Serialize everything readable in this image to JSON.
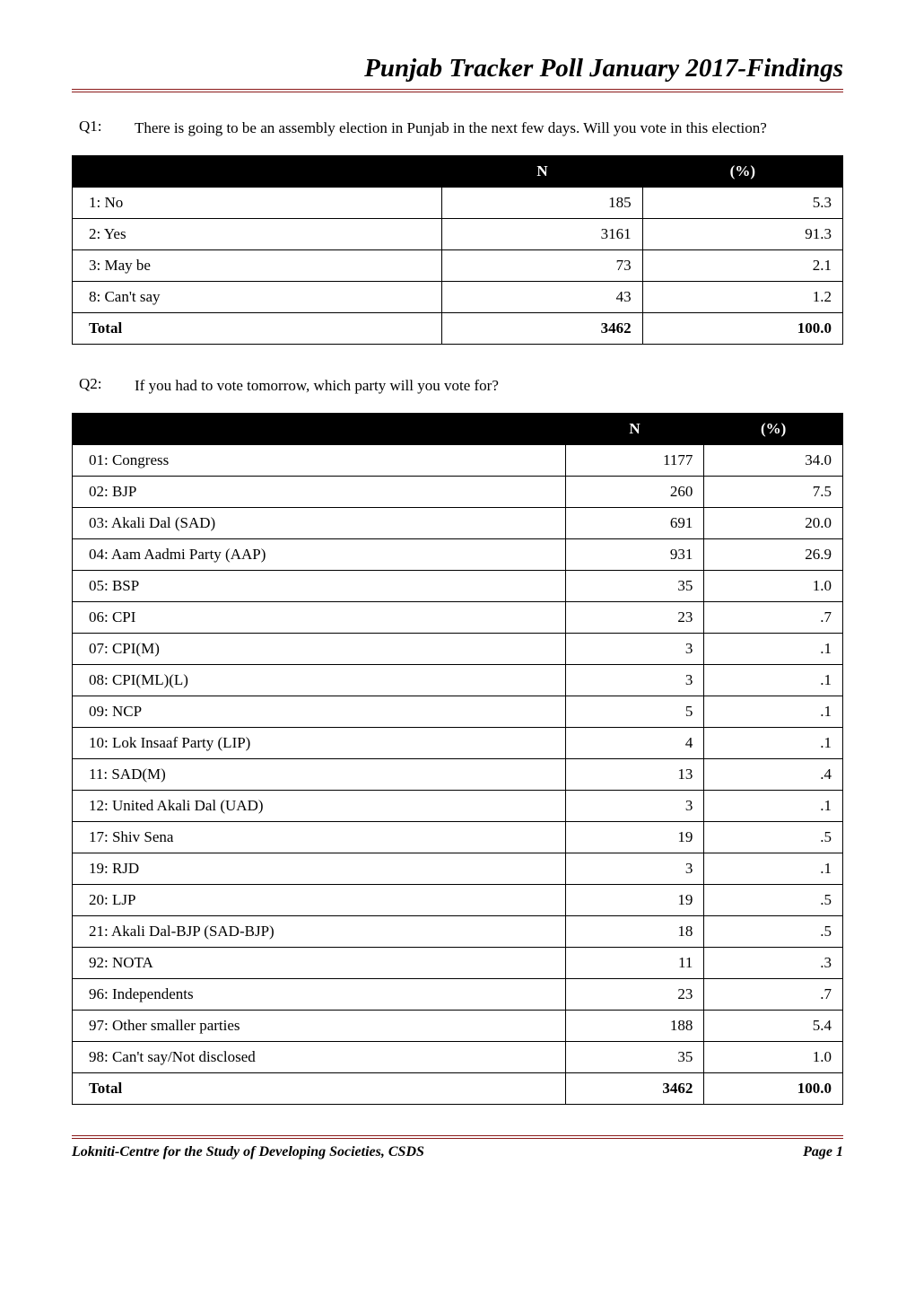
{
  "colors": {
    "rule": "#8b1a1a",
    "header_bg": "#000000",
    "header_fg": "#ffffff",
    "text": "#000000",
    "background": "#ffffff"
  },
  "typography": {
    "title_fontsize_pt": 22,
    "body_fontsize_pt": 13,
    "footer_fontsize_pt": 12,
    "font_family": "Garamond, Georgia, serif"
  },
  "title": "Punjab Tracker Poll January 2017-Findings",
  "q1": {
    "label": "Q1:",
    "text": "There is going to be an assembly election in Punjab in the next few days. Will you vote in this election?",
    "table": {
      "columns": [
        "",
        "N",
        "(%)"
      ],
      "col_widths_pct": [
        48,
        26,
        26
      ],
      "rows": [
        {
          "label": "1: No",
          "n": "185",
          "pct": "5.3"
        },
        {
          "label": "2: Yes",
          "n": "3161",
          "pct": "91.3"
        },
        {
          "label": "3: May be",
          "n": "73",
          "pct": "2.1"
        },
        {
          "label": "8: Can't say",
          "n": "43",
          "pct": "1.2"
        }
      ],
      "total": {
        "label": "Total",
        "n": "3462",
        "pct": "100.0"
      }
    }
  },
  "q2": {
    "label": "Q2:",
    "text": "If you had to vote tomorrow, which party will you vote for?",
    "table": {
      "columns": [
        "",
        "N",
        "(%)"
      ],
      "col_widths_pct": [
        64,
        18,
        18
      ],
      "rows": [
        {
          "label": "01: Congress",
          "n": "1177",
          "pct": "34.0"
        },
        {
          "label": "02: BJP",
          "n": "260",
          "pct": "7.5"
        },
        {
          "label": "03: Akali Dal (SAD)",
          "n": "691",
          "pct": "20.0"
        },
        {
          "label": "04: Aam Aadmi Party (AAP)",
          "n": "931",
          "pct": "26.9"
        },
        {
          "label": "05: BSP",
          "n": "35",
          "pct": "1.0"
        },
        {
          "label": "06: CPI",
          "n": "23",
          "pct": ".7"
        },
        {
          "label": "07: CPI(M)",
          "n": "3",
          "pct": ".1"
        },
        {
          "label": "08: CPI(ML)(L)",
          "n": "3",
          "pct": ".1"
        },
        {
          "label": "09: NCP",
          "n": "5",
          "pct": ".1"
        },
        {
          "label": "10: Lok Insaaf Party (LIP)",
          "n": "4",
          "pct": ".1"
        },
        {
          "label": "11: SAD(M)",
          "n": "13",
          "pct": ".4"
        },
        {
          "label": "12: United Akali Dal (UAD)",
          "n": "3",
          "pct": ".1"
        },
        {
          "label": "17: Shiv Sena",
          "n": "19",
          "pct": ".5"
        },
        {
          "label": "19: RJD",
          "n": "3",
          "pct": ".1"
        },
        {
          "label": "20: LJP",
          "n": "19",
          "pct": ".5"
        },
        {
          "label": "21: Akali Dal-BJP (SAD-BJP)",
          "n": "18",
          "pct": ".5"
        },
        {
          "label": "92: NOTA",
          "n": "11",
          "pct": ".3"
        },
        {
          "label": "96: Independents",
          "n": "23",
          "pct": ".7"
        },
        {
          "label": "97: Other smaller parties",
          "n": "188",
          "pct": "5.4"
        },
        {
          "label": "98: Can't say/Not disclosed",
          "n": "35",
          "pct": "1.0"
        }
      ],
      "total": {
        "label": "Total",
        "n": "3462",
        "pct": "100.0"
      }
    }
  },
  "footer": {
    "left": "Lokniti-Centre for the Study of Developing Societies, CSDS",
    "right": "Page 1"
  }
}
